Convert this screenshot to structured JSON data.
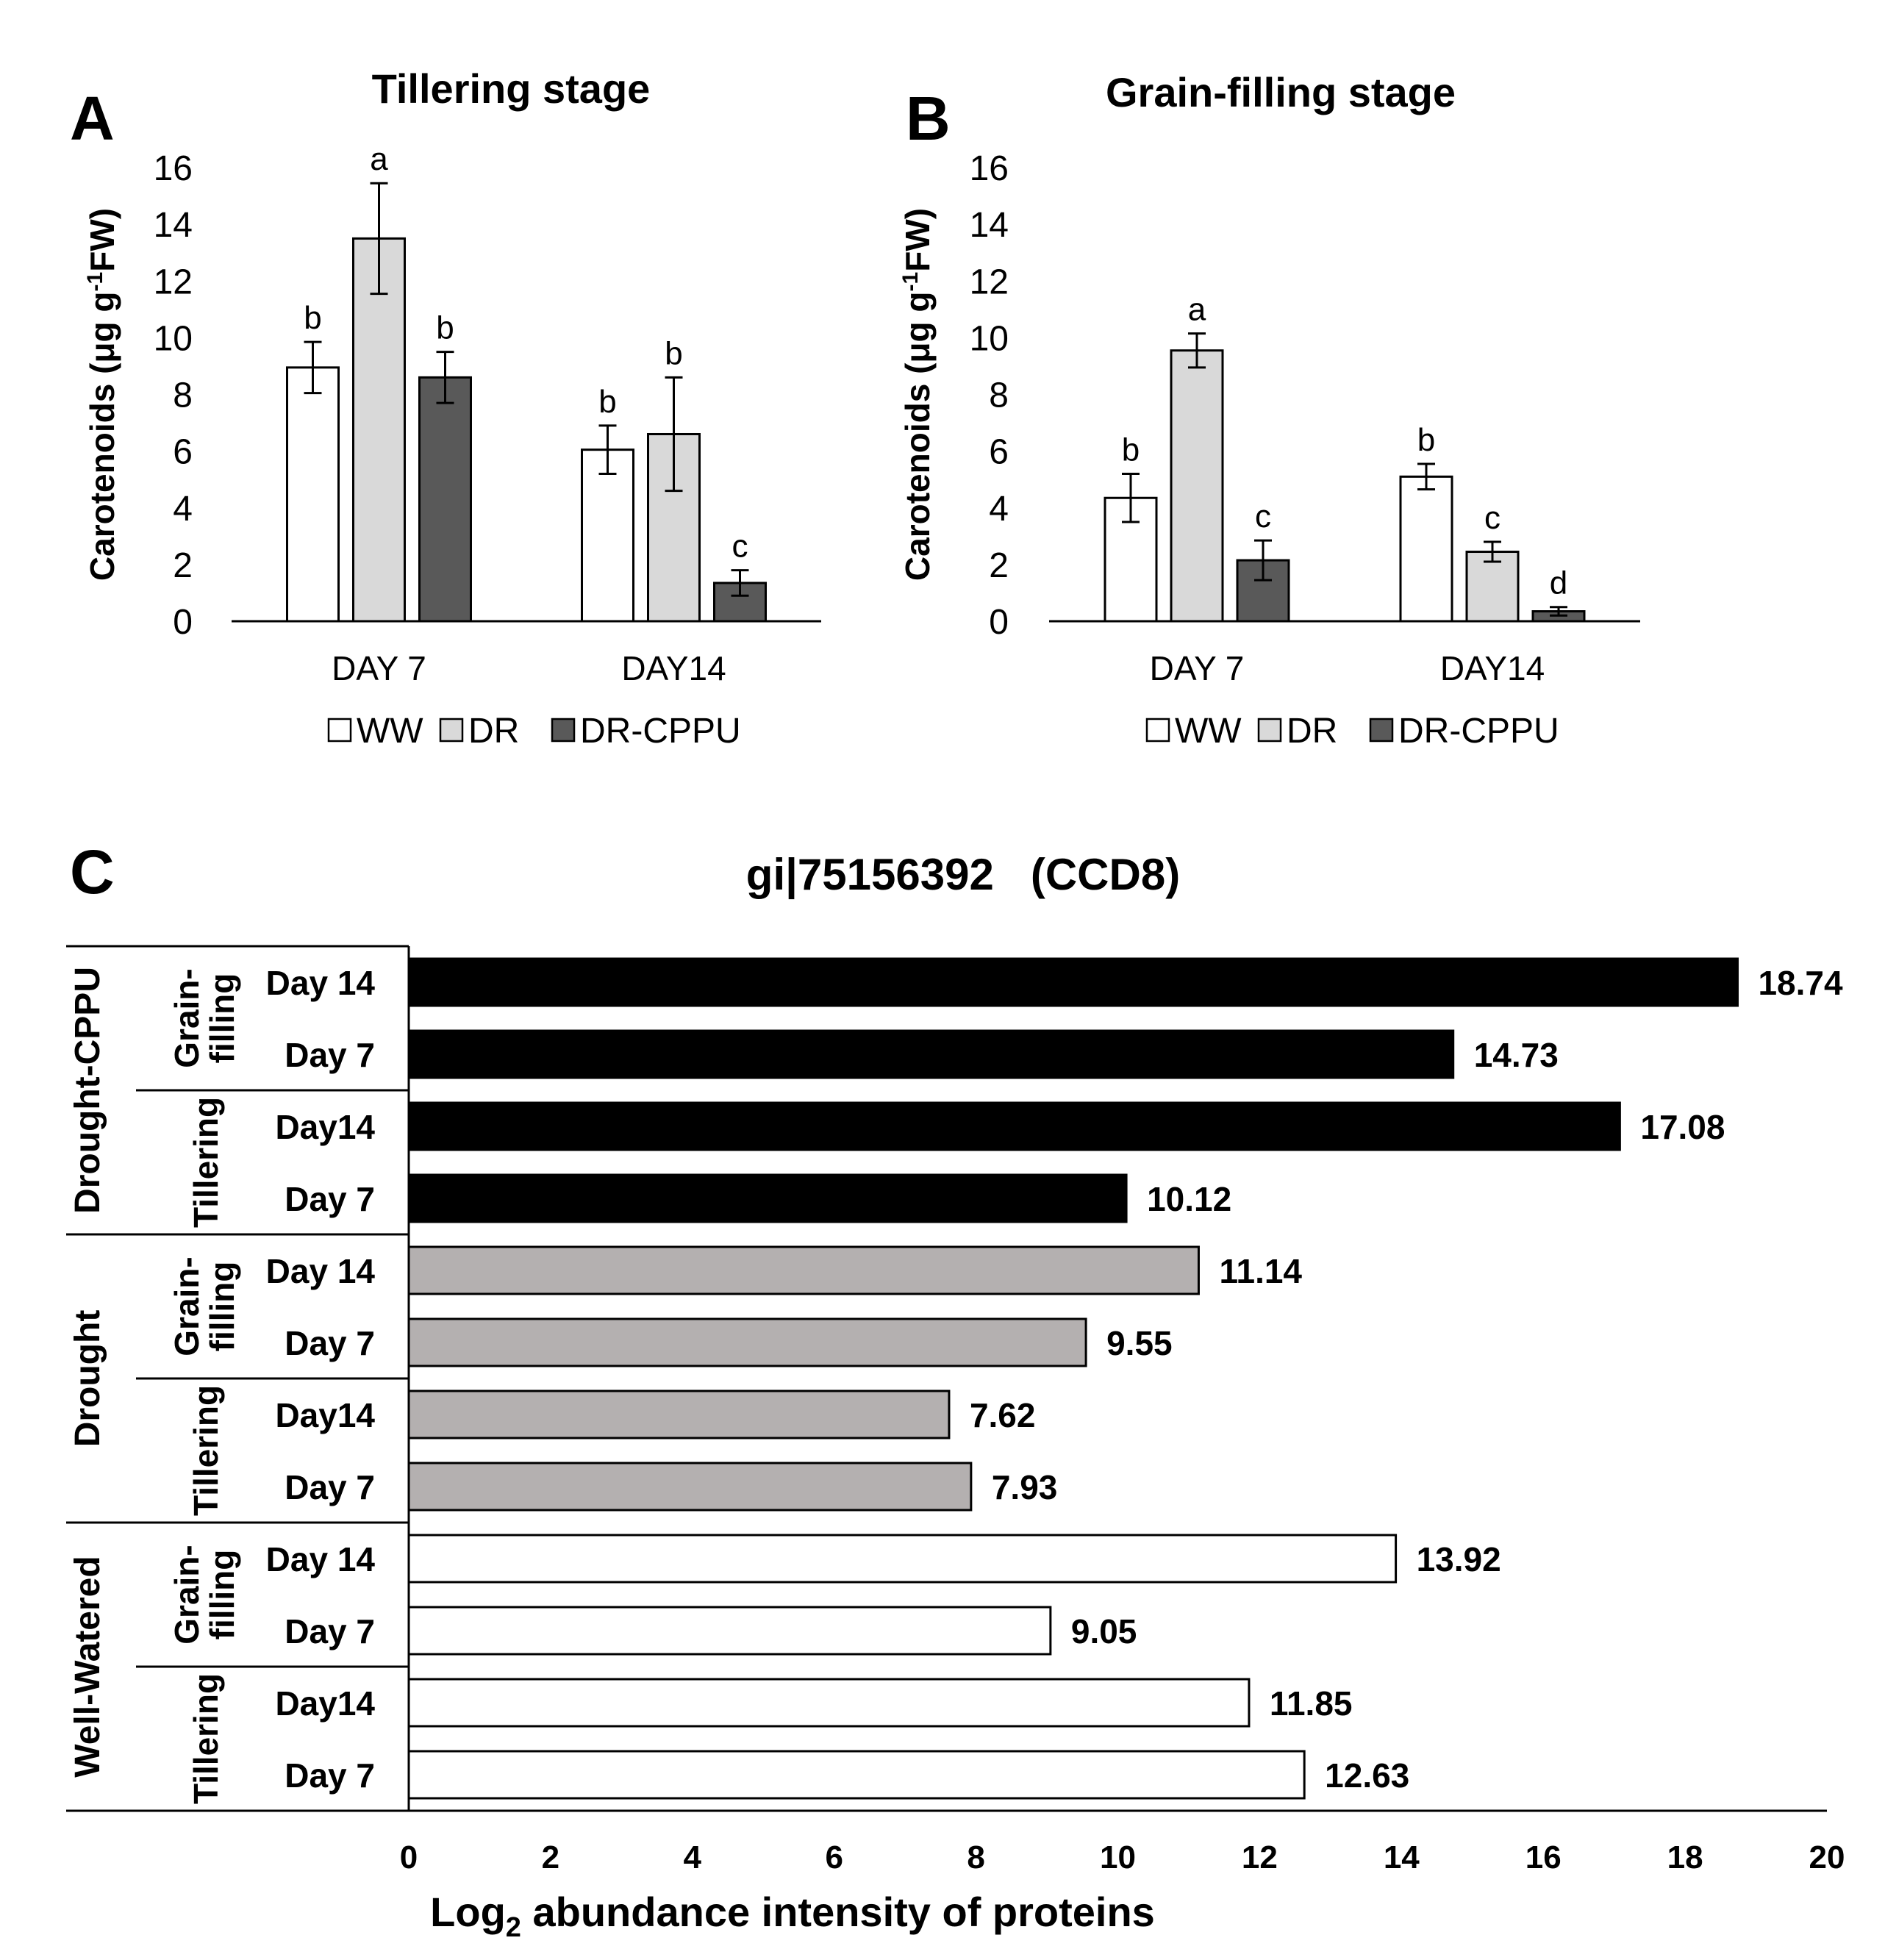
{
  "chart_data": [
    {
      "panel": "A",
      "type": "bar",
      "title": "Tillering stage",
      "ylabel": "Carotenoids (μg g-1FW)",
      "ylabel_parts": [
        "Carotenoids (μg g",
        "-1",
        "FW)"
      ],
      "ylim": [
        0,
        16
      ],
      "yticks": [
        0,
        2,
        4,
        6,
        8,
        10,
        12,
        14,
        16
      ],
      "categories": [
        "DAY 7",
        "DAY14"
      ],
      "series": [
        {
          "name": "WW",
          "color": "#ffffff",
          "values": [
            8.95,
            6.05
          ],
          "errors": [
            0.9,
            0.85
          ],
          "letters": [
            "b",
            "b"
          ]
        },
        {
          "name": "DR",
          "color": "#d9d9d9",
          "values": [
            13.5,
            6.6
          ],
          "errors": [
            1.95,
            2.0
          ],
          "letters": [
            "a",
            "b"
          ]
        },
        {
          "name": "DR-CPPU",
          "color": "#595959",
          "values": [
            8.6,
            1.35
          ],
          "errors": [
            0.9,
            0.45
          ],
          "letters": [
            "b",
            "c"
          ]
        }
      ]
    },
    {
      "panel": "B",
      "type": "bar",
      "title": "Grain-filling stage",
      "ylabel": "Carotenoids (μg g-1FW)",
      "ylabel_parts": [
        "Carotenoids (μg g",
        "-1",
        "FW)"
      ],
      "ylim": [
        0,
        16
      ],
      "yticks": [
        0,
        2,
        4,
        6,
        8,
        10,
        12,
        14,
        16
      ],
      "categories": [
        "DAY 7",
        "DAY14"
      ],
      "series": [
        {
          "name": "WW",
          "color": "#ffffff",
          "values": [
            4.35,
            5.1
          ],
          "errors": [
            0.85,
            0.45
          ],
          "letters": [
            "b",
            "b"
          ]
        },
        {
          "name": "DR",
          "color": "#d9d9d9",
          "values": [
            9.55,
            2.45
          ],
          "errors": [
            0.6,
            0.35
          ],
          "letters": [
            "a",
            "c"
          ]
        },
        {
          "name": "DR-CPPU",
          "color": "#595959",
          "values": [
            2.15,
            0.35
          ],
          "errors": [
            0.7,
            0.15
          ],
          "letters": [
            "c",
            "d"
          ]
        }
      ]
    },
    {
      "panel": "C",
      "type": "bar",
      "orientation": "horizontal",
      "title": "gi|75156392   (CCD8)",
      "xlabel": "Log2 abundance intensity of proteins",
      "xlabel_parts": [
        "Log",
        "2",
        " abundance intensity of proteins"
      ],
      "xlim": [
        0,
        20
      ],
      "xticks": [
        0,
        2,
        4,
        6,
        8,
        10,
        12,
        14,
        16,
        18,
        20
      ],
      "groups": [
        {
          "treatment": "Drought-CPPU",
          "color": "#000000",
          "stages": [
            {
              "stage": [
                "Grain-",
                "filling"
              ],
              "bars": [
                {
                  "day": "Day 14",
                  "value": 18.74
                },
                {
                  "day": "Day 7",
                  "value": 14.73
                }
              ]
            },
            {
              "stage": [
                "Tillering"
              ],
              "bars": [
                {
                  "day": "Day14",
                  "value": 17.08
                },
                {
                  "day": "Day 7",
                  "value": 10.12
                }
              ]
            }
          ]
        },
        {
          "treatment": "Drought",
          "color": "#b4b0b0",
          "stages": [
            {
              "stage": [
                "Grain-",
                "filling"
              ],
              "bars": [
                {
                  "day": "Day 14",
                  "value": 11.14
                },
                {
                  "day": "Day 7",
                  "value": 9.55
                }
              ]
            },
            {
              "stage": [
                "Tillering"
              ],
              "bars": [
                {
                  "day": "Day14",
                  "value": 7.62
                },
                {
                  "day": "Day 7",
                  "value": 7.93
                }
              ]
            }
          ]
        },
        {
          "treatment": "Well-Watered",
          "color": "#ffffff",
          "stages": [
            {
              "stage": [
                "Grain-",
                "filling"
              ],
              "bars": [
                {
                  "day": "Day 14",
                  "value": 13.92
                },
                {
                  "day": "Day 7",
                  "value": 9.05
                }
              ]
            },
            {
              "stage": [
                "Tillering"
              ],
              "bars": [
                {
                  "day": "Day14",
                  "value": 11.85
                },
                {
                  "day": "Day 7",
                  "value": 12.63
                }
              ]
            }
          ]
        }
      ]
    }
  ]
}
